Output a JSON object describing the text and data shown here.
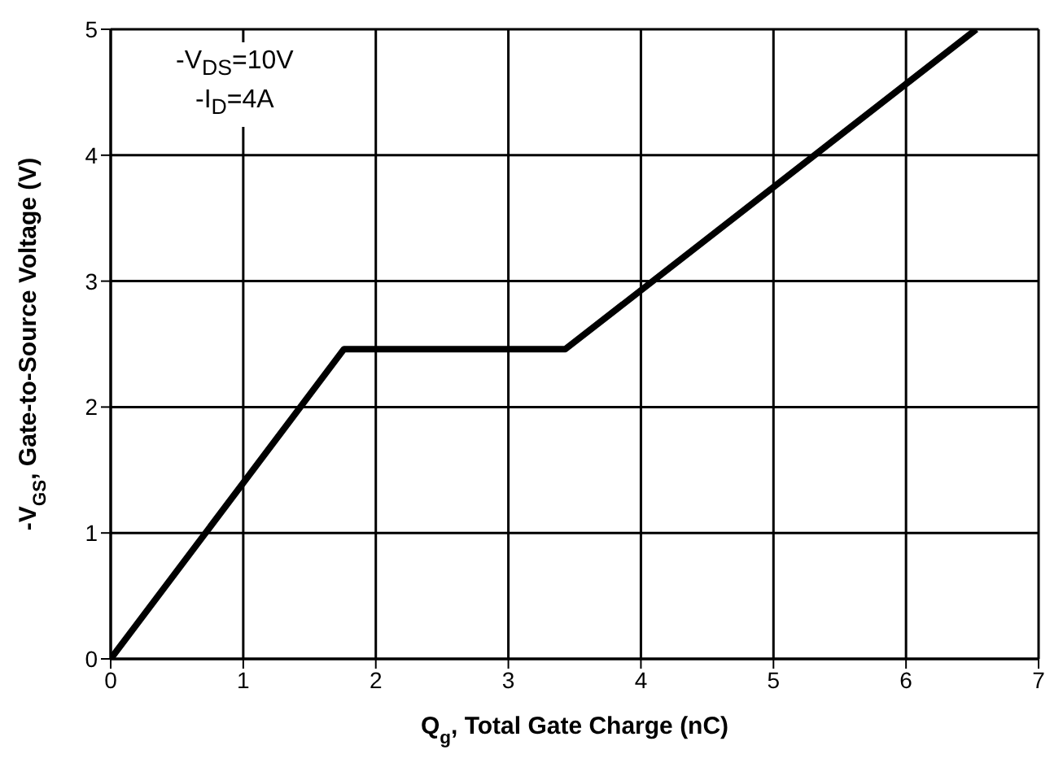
{
  "chart_data": {
    "type": "line",
    "xlabel": "Q$_{g}$, Total Gate Charge (nC)",
    "ylabel": "-V$_{GS}$, Gate-to-Source Voltage (V)",
    "annotations": [
      "-V$_{DS}$=10V",
      "-I$_{D}$=4A"
    ],
    "x": [
      0,
      1.76,
      3.43,
      6.53
    ],
    "series": [
      {
        "color": "#000000",
        "values": [
          0,
          2.46,
          2.46,
          5
        ]
      }
    ],
    "xlim": [
      0,
      7
    ],
    "xticks": [
      0,
      1,
      2,
      3,
      4,
      5,
      6,
      7
    ],
    "ylim": [
      0,
      5
    ],
    "yticks": [
      0,
      1,
      2,
      3,
      4,
      5
    ],
    "grid": true,
    "marker": "none",
    "line_style": "solid"
  }
}
